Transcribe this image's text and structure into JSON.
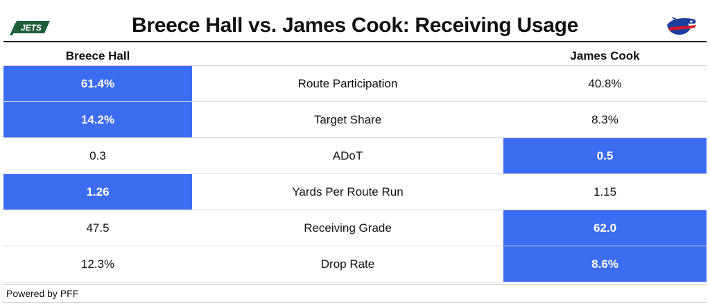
{
  "title": "Breece Hall vs. James Cook: Receiving Usage",
  "logos": {
    "left": "jets-logo",
    "right": "bills-logo",
    "left_text": "JETS"
  },
  "columns": {
    "left": "Breece Hall",
    "right": "James Cook"
  },
  "rows": [
    {
      "metric": "Route Participation",
      "left": "61.4%",
      "right": "40.8%",
      "leader": "left"
    },
    {
      "metric": "Target Share",
      "left": "14.2%",
      "right": "8.3%",
      "leader": "left"
    },
    {
      "metric": "ADoT",
      "left": "0.3",
      "right": "0.5",
      "leader": "right"
    },
    {
      "metric": "Yards Per Route Run",
      "left": "1.26",
      "right": "1.15",
      "leader": "left"
    },
    {
      "metric": "Receiving Grade",
      "left": "47.5",
      "right": "62.0",
      "leader": "right"
    },
    {
      "metric": "Drop Rate",
      "left": "12.3%",
      "right": "8.6%",
      "leader": "right"
    }
  ],
  "footer": "Powered by PFF",
  "colors": {
    "highlight": "#3b6cf2",
    "jets_green": "#1d5f3a",
    "bills_blue": "#1b3f9c",
    "bills_red": "#d7182a"
  }
}
